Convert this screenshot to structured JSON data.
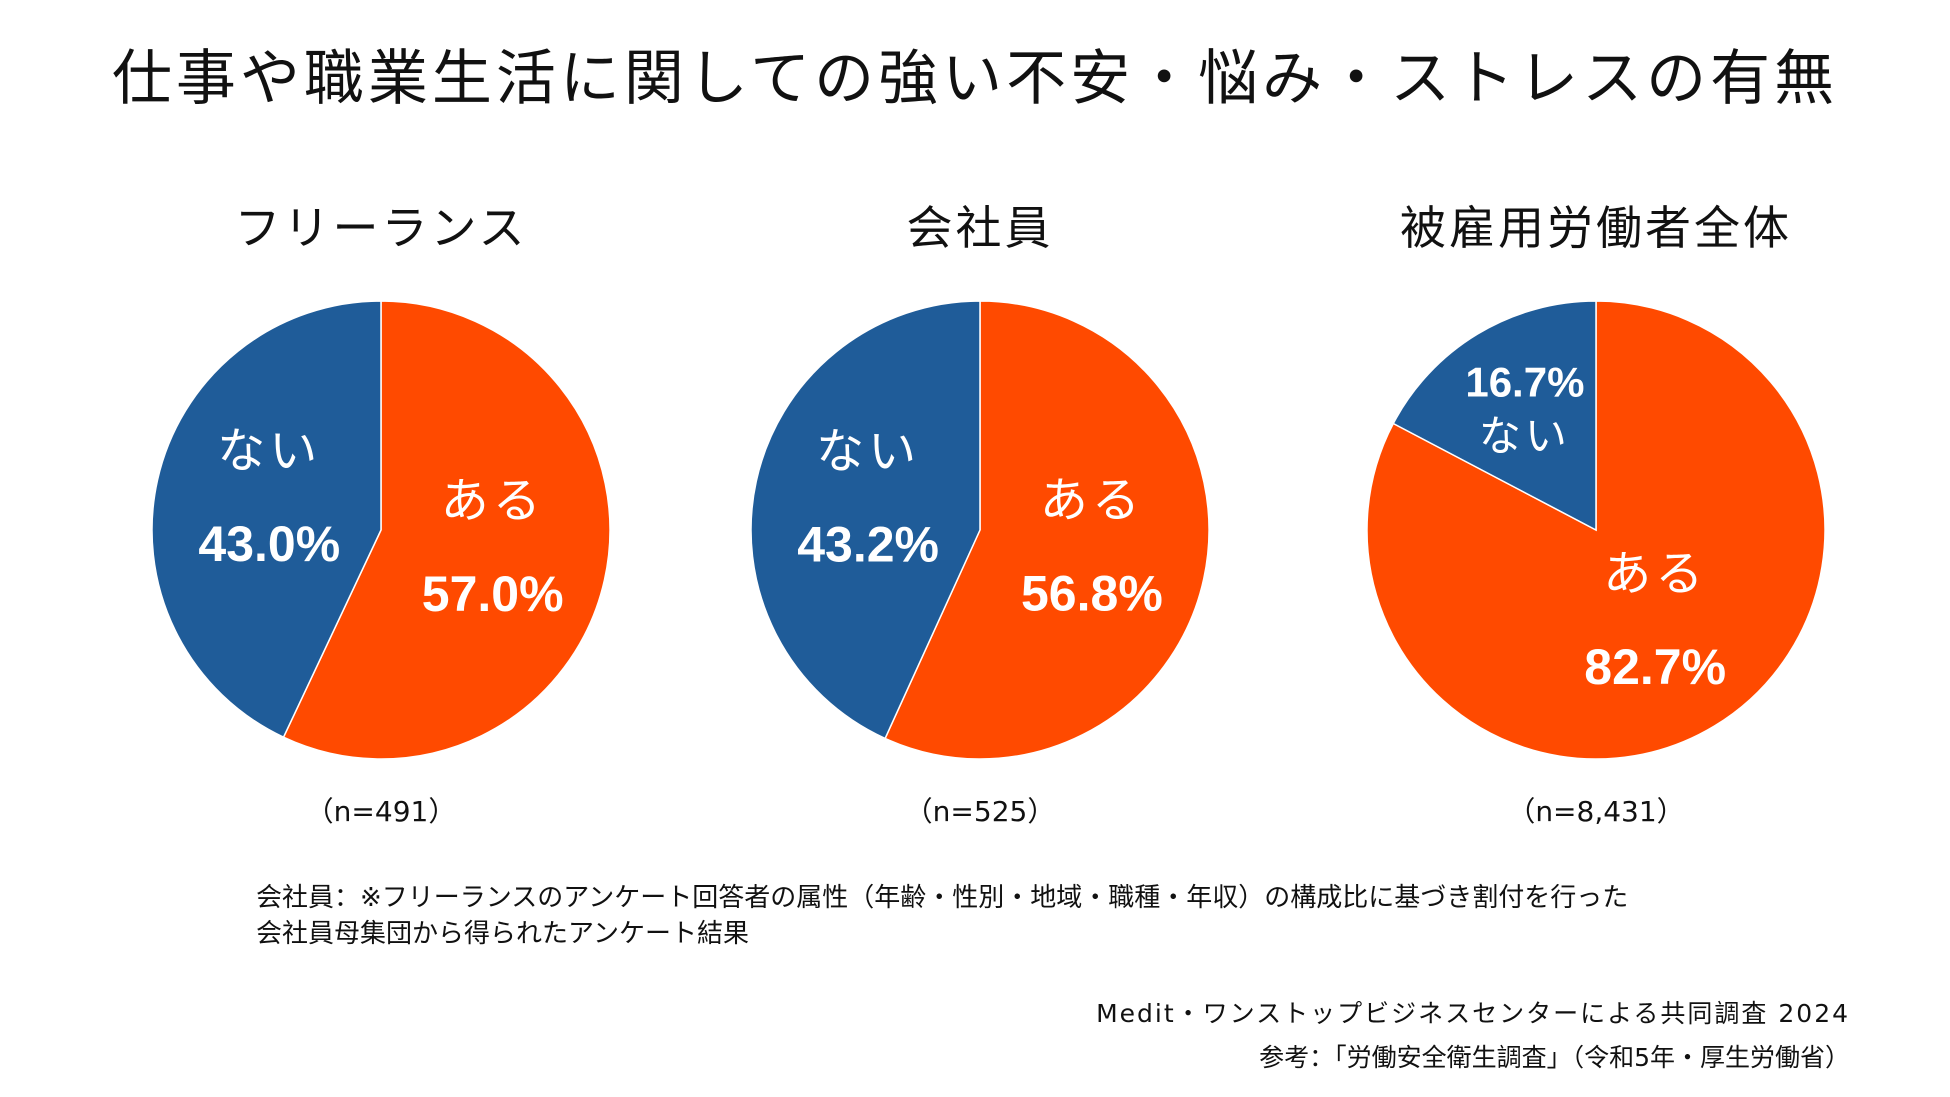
{
  "title": "仕事や職業生活に関しての強い不安・悩み・ストレスの有無",
  "colors": {
    "yes": "#FF4A00",
    "no": "#1F5C99",
    "label": "#FFFFFF"
  },
  "chart_data": [
    {
      "type": "pie",
      "title": "フリーランス",
      "n_label": "（n=491）",
      "slices": [
        {
          "label": "ある",
          "value": 57.0,
          "value_label": "57.0%"
        },
        {
          "label": "ない",
          "value": 43.0,
          "value_label": "43.0%"
        }
      ]
    },
    {
      "type": "pie",
      "title": "会社員",
      "n_label": "（n=525）",
      "slices": [
        {
          "label": "ある",
          "value": 56.8,
          "value_label": "56.8%"
        },
        {
          "label": "ない",
          "value": 43.2,
          "value_label": "43.2%"
        }
      ]
    },
    {
      "type": "pie",
      "title": "被雇用労働者全体",
      "n_label": "（n=8,431）",
      "slices": [
        {
          "label": "ある",
          "value": 82.7,
          "value_label": "82.7%"
        },
        {
          "label": "ない",
          "value": 16.7,
          "value_label": "16.7%"
        }
      ]
    }
  ],
  "footnote": {
    "line1": "会社員：※フリーランスのアンケート回答者の属性（年齢・性別・地域・職種・年収）の構成比に基づき割付を行った",
    "line2": "会社員母集団から得られたアンケート結果"
  },
  "source": {
    "line1": "Medit・ワンストップビジネスセンターによる共同調査 2024",
    "line2": "参考：「労働安全衛生調査」（令和5年・厚生労働省）"
  }
}
